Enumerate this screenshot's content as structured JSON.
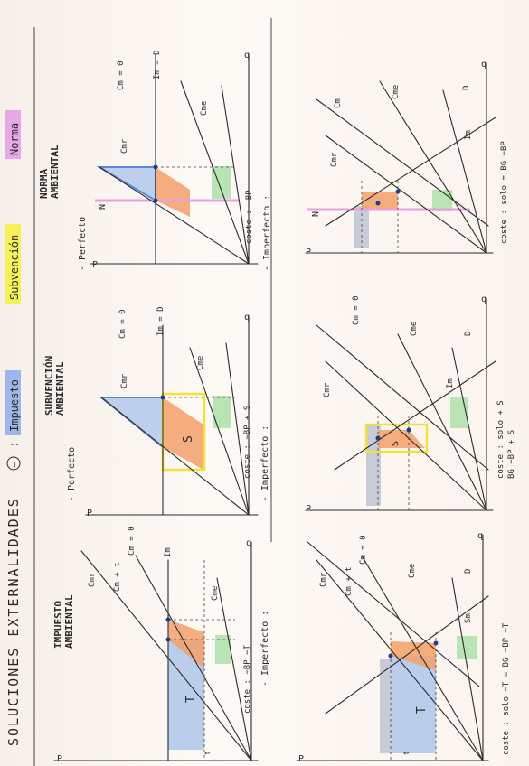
{
  "header": {
    "title": "SOLUCIONES EXTERNALIDADES",
    "circle_mark": "−",
    "colon": ":",
    "tag_impuesto": "Impuesto",
    "tag_subvencion": "Subvención",
    "tag_norma": "Norma"
  },
  "colors": {
    "impuesto": "#9fb7e8",
    "subvencion": "#f6f05a",
    "norma": "#e8a8e8",
    "orange": "#f3a06a",
    "blue": "#a9c3ea",
    "green": "#b9e4b3",
    "gray": "#c7ccd8",
    "dark_blue_line": "#2466c8",
    "red_line": "#b03a3a",
    "yellow_box": "#f2e33a",
    "pink_line": "#e8a0e0"
  },
  "columns": [
    {
      "title_line1": "IMPUESTO",
      "title_line2": "AMBIENTAL",
      "perfect": {
        "curve_labels": [
          "Cmr",
          "Cm + t",
          "Cm = 0",
          "Im",
          "Cme"
        ],
        "axis_p": "P",
        "axis_q": "q",
        "area_label": "T",
        "t_label": "t",
        "cost": "coste : −BP −T"
      },
      "imperfect_label": "- Imperfecto :",
      "imperfect": {
        "curve_labels": [
          "Cmr",
          "Cm + t",
          "Cm = 0",
          "Cme",
          "D",
          "Sm"
        ],
        "axis_p": "P",
        "axis_q": "q",
        "area_label": "T",
        "t_label": "t",
        "cost": "coste : solo −T = BG −BP −T"
      }
    },
    {
      "title_line1": "SUBVENCIÓN",
      "title_line2": "AMBIENTAL",
      "perfect_label": "- Perfecto",
      "perfect": {
        "curve_labels": [
          "Cmr",
          "Cm = 0",
          "Im = D",
          "Cme"
        ],
        "axis_p": "P",
        "axis_q": "q",
        "area_label": "S",
        "cost": "coste : −BP + S"
      },
      "imperfect_label": "- Imperfecto :",
      "imperfect": {
        "curve_labels": [
          "Cmr",
          "Cm = 0",
          "Cme",
          "D",
          "Im"
        ],
        "axis_p": "P",
        "axis_q": "q",
        "area_label": "S",
        "cost": "coste : solo + S",
        "cost2": "BG −BP + S"
      }
    },
    {
      "title_line1": "NORMA",
      "title_line2": "AMBIENTAL",
      "perfect_label": "- Perfecto",
      "perfect": {
        "curve_labels": [
          "Cmr",
          "Cm = 0",
          "Im = D",
          "Cme"
        ],
        "axis_p": "P",
        "axis_q": "q",
        "norm_label": "N",
        "cost": "coste : −BP"
      },
      "imperfect_label": "- Imperfecto :",
      "imperfect": {
        "curve_labels": [
          "Cmr",
          "Cm",
          "Cme",
          "D",
          "Im"
        ],
        "axis_p": "P",
        "axis_q": "q",
        "norm_label": "N",
        "cost": "coste : solo = BG −BP"
      }
    }
  ]
}
